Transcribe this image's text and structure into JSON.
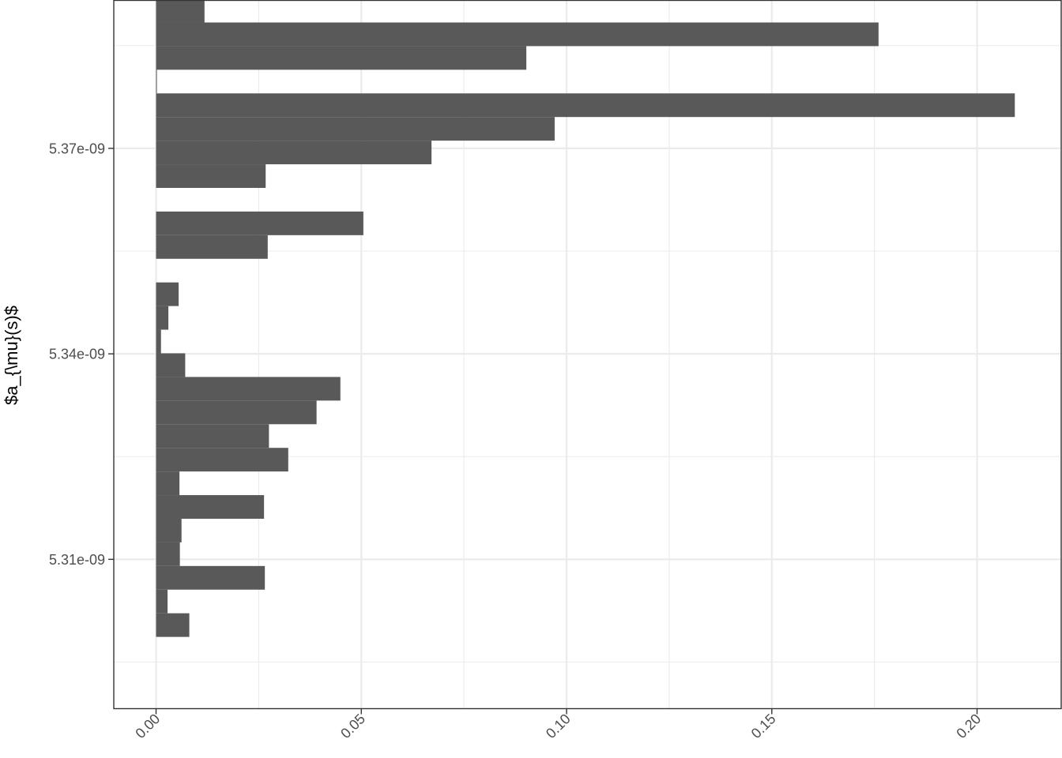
{
  "chart_data": {
    "type": "bar",
    "orientation": "horizontal",
    "xlabel": "",
    "ylabel": "$a_{\\mu}(s)$",
    "xlim": [
      -0.0103,
      0.2205
    ],
    "ylim": [
      5.2882e-09,
      5.3916e-09
    ],
    "x_ticks": [
      {
        "value": 0.0,
        "label": "0.00"
      },
      {
        "value": 0.05,
        "label": "0.05"
      },
      {
        "value": 0.1,
        "label": "0.10"
      },
      {
        "value": 0.15,
        "label": "0.15"
      },
      {
        "value": 0.2,
        "label": "0.20"
      }
    ],
    "y_ticks": [
      {
        "value": 5.31e-09,
        "label": "5.31e-09"
      },
      {
        "value": 5.34e-09,
        "label": "5.34e-09"
      },
      {
        "value": 5.37e-09,
        "label": "5.37e-09"
      }
    ],
    "bin_width": 3.45e-12,
    "bins": [
      {
        "y": 5.3004e-09,
        "x": 0.0081
      },
      {
        "y": 5.30385e-09,
        "x": 0.0028
      },
      {
        "y": 5.3073e-09,
        "x": 0.0265
      },
      {
        "y": 5.31075e-09,
        "x": 0.0058
      },
      {
        "y": 5.3142e-09,
        "x": 0.0062
      },
      {
        "y": 5.31765e-09,
        "x": 0.0263
      },
      {
        "y": 5.3211e-09,
        "x": 0.0057
      },
      {
        "y": 5.32455e-09,
        "x": 0.0322
      },
      {
        "y": 5.328e-09,
        "x": 0.0275
      },
      {
        "y": 5.33145e-09,
        "x": 0.0391
      },
      {
        "y": 5.3349e-09,
        "x": 0.0449
      },
      {
        "y": 5.33835e-09,
        "x": 0.0071
      },
      {
        "y": 5.3418e-09,
        "x": 0.0012
      },
      {
        "y": 5.34525e-09,
        "x": 0.003
      },
      {
        "y": 5.3487e-09,
        "x": 0.0055
      },
      {
        "y": 5.3556e-09,
        "x": 0.0272
      },
      {
        "y": 5.35905e-09,
        "x": 0.0505
      },
      {
        "y": 5.36595e-09,
        "x": 0.0267
      },
      {
        "y": 5.3694e-09,
        "x": 0.0671
      },
      {
        "y": 5.37285e-09,
        "x": 0.0971
      },
      {
        "y": 5.3763e-09,
        "x": 0.2092
      },
      {
        "y": 5.37975e-09,
        "x": 0.0002
      },
      {
        "y": 5.3832e-09,
        "x": 0.0902
      },
      {
        "y": 5.38665e-09,
        "x": 0.176
      },
      {
        "y": 5.3901e-09,
        "x": 0.0118
      }
    ],
    "grid": true,
    "legend": "none",
    "colors": {
      "bar_fill": "#595959",
      "grid": "#ebebeb",
      "panel_border": "#333333",
      "tick_text": "#4d4d4d"
    }
  }
}
